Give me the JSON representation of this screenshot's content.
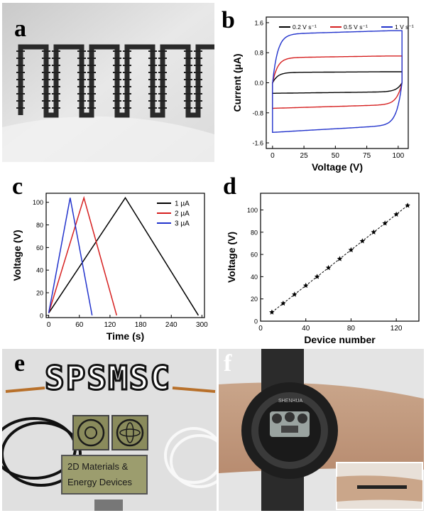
{
  "panels": {
    "a": {
      "label": "a"
    },
    "b": {
      "label": "b"
    },
    "c": {
      "label": "c"
    },
    "d": {
      "label": "d"
    },
    "e": {
      "label": "e",
      "logo_text": "SPSMSC",
      "sign_line1": "2D Materials &",
      "sign_line2": "Energy Devices"
    },
    "f": {
      "label": "f",
      "watch_brand": "SHENHUA"
    }
  },
  "chart_data": [
    {
      "id": "b",
      "type": "line",
      "xlabel": "Voltage (V)",
      "ylabel": "Current (µA)",
      "xlim": [
        -5,
        108
      ],
      "ylim": [
        -1.75,
        1.75
      ],
      "xticks": [
        0,
        25,
        50,
        75,
        100
      ],
      "yticks": [
        -1.6,
        -0.8,
        0.0,
        0.8,
        1.6
      ],
      "ytick_labels": [
        "-1.6",
        "-0.8",
        "0.0",
        "0.8",
        "1.6"
      ],
      "legend_position": "top",
      "series": [
        {
          "name": "0.2 V s⁻¹",
          "color": "#000000",
          "amplitude": 0.28
        },
        {
          "name": "0.5 V s⁻¹",
          "color": "#d62020",
          "amplitude": 0.68
        },
        {
          "name": "1 V s⁻¹",
          "color": "#2233cc",
          "amplitude": 1.32
        }
      ]
    },
    {
      "id": "c",
      "type": "line",
      "xlabel": "Time (s)",
      "ylabel": "Voltage (V)",
      "xlim": [
        -5,
        305
      ],
      "ylim": [
        -2,
        108
      ],
      "xticks": [
        0,
        60,
        120,
        180,
        240,
        300
      ],
      "yticks": [
        0,
        20,
        40,
        60,
        80,
        100
      ],
      "legend_position": "top-right",
      "series": [
        {
          "name": "1 µA",
          "color": "#000000",
          "x": [
            0,
            150,
            293
          ],
          "y": [
            2,
            104,
            0
          ]
        },
        {
          "name": "2 µA",
          "color": "#d62020",
          "x": [
            0,
            69,
            133
          ],
          "y": [
            2,
            104,
            0
          ]
        },
        {
          "name": "3 µA",
          "color": "#2233cc",
          "x": [
            0,
            42,
            85
          ],
          "y": [
            2,
            104,
            0
          ]
        }
      ]
    },
    {
      "id": "d",
      "type": "line",
      "xlabel": "Device number",
      "ylabel": "Voltage (V)",
      "xlim": [
        0,
        140
      ],
      "ylim": [
        0,
        115
      ],
      "xticks": [
        0,
        40,
        80,
        120
      ],
      "yticks": [
        0,
        20,
        40,
        60,
        80,
        100
      ],
      "series": [
        {
          "name": "",
          "color": "#000000",
          "x": [
            10,
            20,
            30,
            40,
            50,
            60,
            70,
            80,
            90,
            100,
            110,
            120,
            130
          ],
          "y": [
            8,
            16,
            24,
            32,
            40,
            48,
            56,
            64,
            72,
            80,
            88,
            96,
            104
          ]
        }
      ]
    }
  ]
}
